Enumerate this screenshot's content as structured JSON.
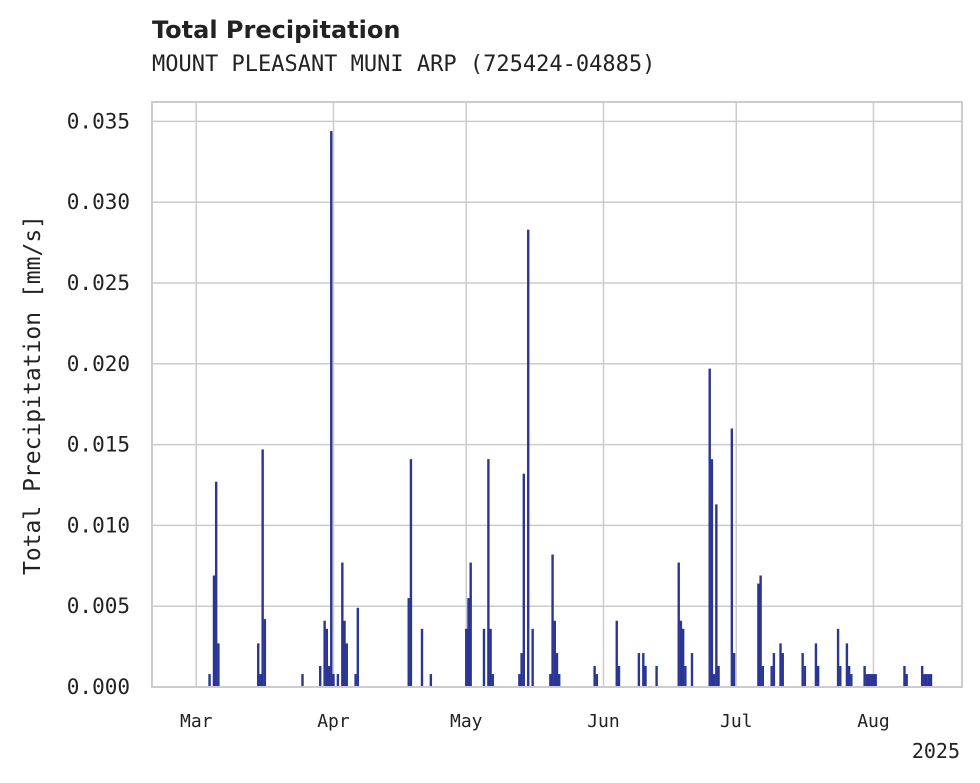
{
  "chart_data": {
    "type": "bar",
    "title": "Total Precipitation",
    "subtitle": "MOUNT PLEASANT MUNI ARP (725424-04885)",
    "xlabel": "",
    "ylabel": "Total Precipitation [mm/s]",
    "ylim": [
      0,
      0.0362
    ],
    "xlim": [
      "2025-02-19",
      "2025-08-21"
    ],
    "grid": true,
    "bar_color": "#2b3593",
    "yticks": [
      "0.000",
      "0.005",
      "0.010",
      "0.015",
      "0.020",
      "0.025",
      "0.030",
      "0.035"
    ],
    "xticks": [
      {
        "date": "2025-03-01",
        "label": "Mar"
      },
      {
        "date": "2025-04-01",
        "label": "Apr"
      },
      {
        "date": "2025-05-01",
        "label": "May"
      },
      {
        "date": "2025-06-01",
        "label": "Jun"
      },
      {
        "date": "2025-07-01",
        "label": "Jul"
      },
      {
        "date": "2025-08-01",
        "label": "Aug"
      }
    ],
    "year_label": "2025",
    "points": [
      [
        "2025-03-04",
        0.0008
      ],
      [
        "2025-03-05",
        0.0069
      ],
      [
        "2025-03-05T12",
        0.0127
      ],
      [
        "2025-03-06",
        0.0027
      ],
      [
        "2025-03-15",
        0.0027
      ],
      [
        "2025-03-15T12",
        0.0008
      ],
      [
        "2025-03-16",
        0.0147
      ],
      [
        "2025-03-16T12",
        0.0042
      ],
      [
        "2025-03-25",
        0.0008
      ],
      [
        "2025-03-29",
        0.0013
      ],
      [
        "2025-03-30",
        0.0041
      ],
      [
        "2025-03-30T12",
        0.0036
      ],
      [
        "2025-03-31",
        0.0013
      ],
      [
        "2025-03-31T12",
        0.0344
      ],
      [
        "2025-04-01",
        0.0008
      ],
      [
        "2025-04-02",
        0.0008
      ],
      [
        "2025-04-03",
        0.0077
      ],
      [
        "2025-04-03T12",
        0.0041
      ],
      [
        "2025-04-04",
        0.0027
      ],
      [
        "2025-04-06",
        0.0008
      ],
      [
        "2025-04-06T12",
        0.0049
      ],
      [
        "2025-04-18",
        0.0055
      ],
      [
        "2025-04-18T12",
        0.0141
      ],
      [
        "2025-04-21",
        0.0036
      ],
      [
        "2025-04-23",
        0.0008
      ],
      [
        "2025-05-01",
        0.0036
      ],
      [
        "2025-05-01T12",
        0.0055
      ],
      [
        "2025-05-02",
        0.0077
      ],
      [
        "2025-05-05",
        0.0036
      ],
      [
        "2025-05-06",
        0.0141
      ],
      [
        "2025-05-06T12",
        0.0036
      ],
      [
        "2025-05-07",
        0.0008
      ],
      [
        "2025-05-13",
        0.0008
      ],
      [
        "2025-05-13T12",
        0.0021
      ],
      [
        "2025-05-14",
        0.0132
      ],
      [
        "2025-05-15",
        0.0283
      ],
      [
        "2025-05-16",
        0.0036
      ],
      [
        "2025-05-20",
        0.0008
      ],
      [
        "2025-05-20T12",
        0.0082
      ],
      [
        "2025-05-21",
        0.0041
      ],
      [
        "2025-05-21T12",
        0.0021
      ],
      [
        "2025-05-22",
        0.0008
      ],
      [
        "2025-05-30",
        0.0013
      ],
      [
        "2025-05-30T12",
        0.0008
      ],
      [
        "2025-06-04",
        0.0041
      ],
      [
        "2025-06-04T12",
        0.0013
      ],
      [
        "2025-06-09",
        0.0021
      ],
      [
        "2025-06-10",
        0.0021
      ],
      [
        "2025-06-10T12",
        0.0013
      ],
      [
        "2025-06-13",
        0.0013
      ],
      [
        "2025-06-18",
        0.0077
      ],
      [
        "2025-06-18T12",
        0.0041
      ],
      [
        "2025-06-19",
        0.0036
      ],
      [
        "2025-06-19T12",
        0.0013
      ],
      [
        "2025-06-21",
        0.0021
      ],
      [
        "2025-06-25",
        0.0197
      ],
      [
        "2025-06-25T12",
        0.0141
      ],
      [
        "2025-06-26",
        0.0008
      ],
      [
        "2025-06-26T12",
        0.0113
      ],
      [
        "2025-06-27",
        0.0013
      ],
      [
        "2025-06-30",
        0.016
      ],
      [
        "2025-06-30T12",
        0.0021
      ],
      [
        "2025-07-06",
        0.0064
      ],
      [
        "2025-07-06T12",
        0.0069
      ],
      [
        "2025-07-07",
        0.0013
      ],
      [
        "2025-07-09",
        0.0013
      ],
      [
        "2025-07-09T12",
        0.0021
      ],
      [
        "2025-07-11",
        0.0027
      ],
      [
        "2025-07-11T12",
        0.0021
      ],
      [
        "2025-07-16",
        0.0021
      ],
      [
        "2025-07-16T12",
        0.0013
      ],
      [
        "2025-07-19",
        0.0027
      ],
      [
        "2025-07-19T12",
        0.0013
      ],
      [
        "2025-07-24",
        0.0036
      ],
      [
        "2025-07-24T12",
        0.0013
      ],
      [
        "2025-07-26",
        0.0027
      ],
      [
        "2025-07-26T12",
        0.0013
      ],
      [
        "2025-07-27",
        0.0008
      ],
      [
        "2025-07-30",
        0.0013
      ],
      [
        "2025-07-30T12",
        0.0008
      ],
      [
        "2025-07-31",
        0.0008
      ],
      [
        "2025-07-31T12",
        0.0008
      ],
      [
        "2025-08-01",
        0.0008
      ],
      [
        "2025-08-01T12",
        0.0008
      ],
      [
        "2025-08-08",
        0.0013
      ],
      [
        "2025-08-08T12",
        0.0008
      ],
      [
        "2025-08-12",
        0.0013
      ],
      [
        "2025-08-12T12",
        0.0008
      ],
      [
        "2025-08-13",
        0.0008
      ],
      [
        "2025-08-13T12",
        0.0008
      ],
      [
        "2025-08-14",
        0.0008
      ]
    ]
  }
}
